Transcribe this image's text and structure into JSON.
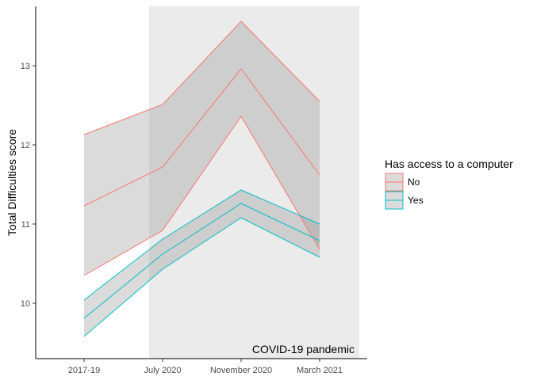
{
  "chart_data": {
    "type": "area",
    "xlabel": "",
    "ylabel": "Total Difficulties score",
    "categories": [
      "2017-19",
      "July 2020",
      "November 2020",
      "March 2021"
    ],
    "ylim": [
      9.3,
      13.75
    ],
    "yticks": [
      10,
      11,
      12,
      13
    ],
    "grid": false,
    "shaded_region": {
      "from": "July 2020",
      "to": "March 2021",
      "label": "COVID-19 pandemic",
      "color": "#ebebeb"
    },
    "legend": {
      "title": "Has access to a computer",
      "position": "right"
    },
    "series": [
      {
        "name": "No",
        "color": "#f8766d",
        "values": [
          11.23,
          11.72,
          12.96,
          11.62
        ],
        "lower": [
          10.35,
          10.92,
          12.36,
          10.68
        ],
        "upper": [
          12.13,
          12.51,
          13.56,
          12.55
        ]
      },
      {
        "name": "Yes",
        "color": "#00bfc4",
        "values": [
          9.81,
          10.62,
          11.26,
          10.79
        ],
        "lower": [
          9.58,
          10.43,
          11.08,
          10.58
        ],
        "upper": [
          10.04,
          10.81,
          11.43,
          11.0
        ]
      }
    ],
    "ribbon_fill": "#999999"
  }
}
